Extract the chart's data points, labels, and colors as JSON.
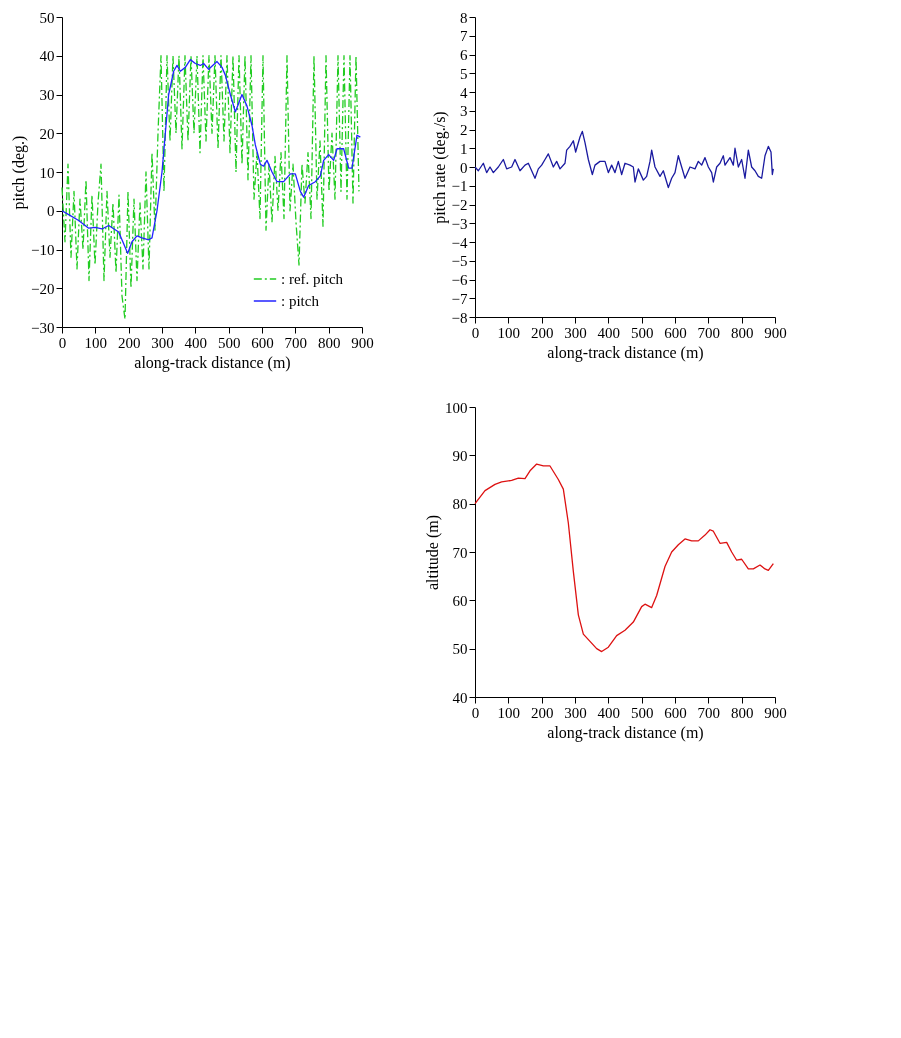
{
  "chart_data": [
    {
      "type": "line",
      "xlabel": "along-track distance (m)",
      "ylabel": "pitch (deg.)",
      "xlim": [
        0,
        900
      ],
      "ylim": [
        -30,
        50
      ],
      "xticks": [
        0,
        100,
        200,
        300,
        400,
        500,
        600,
        700,
        800,
        900
      ],
      "yticks": [
        -30,
        -20,
        -10,
        0,
        10,
        20,
        30,
        40,
        50
      ],
      "grid": false,
      "legend": "bottom right",
      "series": [
        {
          "name": ": ref. pitch",
          "color": "#22cc22",
          "line_style": "dashed",
          "x": [
            0,
            9,
            18,
            27,
            36,
            45,
            54,
            63,
            72,
            81,
            90,
            99,
            108,
            117,
            126,
            135,
            144,
            153,
            162,
            171,
            180,
            189,
            198,
            207,
            216,
            225,
            234,
            243,
            252,
            261,
            270,
            279,
            288,
            297,
            306,
            315,
            324,
            333,
            342,
            351,
            360,
            369,
            378,
            387,
            396,
            405,
            414,
            423,
            432,
            441,
            450,
            459,
            468,
            477,
            486,
            495,
            504,
            513,
            522,
            531,
            540,
            549,
            558,
            567,
            576,
            585,
            594,
            603,
            612,
            621,
            630,
            639,
            648,
            657,
            666,
            675,
            684,
            693,
            702,
            711,
            720,
            729,
            738,
            747,
            756,
            765,
            774,
            783,
            792,
            801,
            810,
            819,
            828,
            837,
            846,
            855,
            864,
            873,
            882,
            891
          ],
          "values": [
            6,
            -8,
            12,
            -12,
            5,
            -15,
            3,
            -10,
            8,
            -18,
            4,
            -14,
            2,
            12,
            -18,
            5,
            -12,
            2,
            -16,
            4,
            -22,
            -28,
            5,
            -20,
            3,
            -18,
            2,
            -15,
            10,
            -15,
            15,
            -5,
            20,
            40,
            5,
            40,
            18,
            40,
            20,
            40,
            16,
            40,
            18,
            40,
            20,
            40,
            15,
            40,
            18,
            40,
            20,
            40,
            16,
            40,
            18,
            40,
            15,
            40,
            10,
            40,
            12,
            40,
            8,
            40,
            3,
            15,
            -2,
            40,
            -5,
            12,
            -3,
            14,
            0,
            15,
            -2,
            40,
            0,
            12,
            -3,
            -14,
            12,
            2,
            15,
            -2,
            40,
            3,
            18,
            -4,
            40,
            5,
            20,
            3,
            40,
            5,
            40,
            3,
            40,
            2,
            40,
            5
          ]
        },
        {
          "name": ": pitch",
          "color": "#2222ff",
          "line_style": "solid",
          "x": [
            0,
            20,
            50,
            80,
            100,
            120,
            140,
            170,
            185,
            197,
            210,
            225,
            240,
            260,
            270,
            285,
            300,
            310,
            320,
            335,
            345,
            355,
            370,
            385,
            400,
            415,
            425,
            440,
            465,
            480,
            490,
            505,
            520,
            540,
            555,
            570,
            580,
            595,
            605,
            615,
            630,
            645,
            665,
            685,
            700,
            715,
            725,
            740,
            760,
            775,
            785,
            800,
            815,
            825,
            845,
            860,
            870,
            885,
            895
          ],
          "values": [
            0,
            -1,
            -2.5,
            -4.5,
            -4.3,
            -4.7,
            -3.8,
            -5.5,
            -8.5,
            -11,
            -8,
            -6.5,
            -7,
            -7.5,
            -7,
            0,
            10,
            20,
            30,
            36,
            37.5,
            36,
            37,
            39,
            38,
            37.5,
            38,
            36.5,
            38.5,
            37,
            35,
            30,
            25.5,
            30,
            27,
            22,
            17,
            12,
            11.5,
            13,
            10,
            7.5,
            7.5,
            9.5,
            9.5,
            5,
            3.5,
            6.5,
            7.5,
            9,
            13,
            14.5,
            13,
            16,
            16,
            11,
            11,
            19.5,
            19
          ]
        }
      ]
    },
    {
      "type": "line",
      "xlabel": "along-track distance (m)",
      "ylabel": "pitch rate (deg./s)",
      "xlim": [
        0,
        900
      ],
      "ylim": [
        -8,
        8
      ],
      "xticks": [
        0,
        100,
        200,
        300,
        400,
        500,
        600,
        700,
        800,
        900
      ],
      "yticks": [
        -8,
        -7,
        -6,
        -5,
        -4,
        -3,
        -2,
        -1,
        0,
        1,
        2,
        3,
        4,
        5,
        6,
        7,
        8
      ],
      "grid": false,
      "legend": false,
      "series": [
        {
          "color": "#1a1aa0",
          "line_style": "solid",
          "x": [
            0,
            10,
            25,
            35,
            45,
            55,
            70,
            85,
            95,
            110,
            120,
            135,
            150,
            160,
            170,
            180,
            190,
            200,
            210,
            220,
            235,
            245,
            255,
            270,
            275,
            285,
            295,
            302,
            315,
            322,
            330,
            340,
            352,
            360,
            375,
            390,
            400,
            410,
            420,
            430,
            440,
            450,
            465,
            475,
            480,
            490,
            505,
            515,
            525,
            530,
            540,
            555,
            565,
            575,
            580,
            590,
            600,
            610,
            620,
            630,
            645,
            660,
            670,
            680,
            690,
            700,
            710,
            715,
            725,
            735,
            745,
            750,
            765,
            775,
            780,
            790,
            800,
            810,
            820,
            830,
            840,
            850,
            860,
            870,
            880,
            888,
            892,
            895
          ],
          "values": [
            0,
            -0.2,
            0.2,
            -0.3,
            0,
            -0.3,
            0,
            0.4,
            -0.1,
            0,
            0.4,
            -0.2,
            0.1,
            0.2,
            -0.2,
            -0.6,
            -0.1,
            0.1,
            0.4,
            0.7,
            0,
            0.3,
            -0.1,
            0.2,
            0.9,
            1.1,
            1.4,
            0.8,
            1.6,
            1.9,
            1.3,
            0.4,
            -0.4,
            0.1,
            0.3,
            0.3,
            -0.3,
            0.1,
            -0.3,
            0.3,
            -0.4,
            0.2,
            0.1,
            0,
            -0.8,
            -0.1,
            -0.7,
            -0.5,
            0.3,
            0.9,
            0,
            -0.5,
            -0.2,
            -0.8,
            -1.1,
            -0.6,
            -0.3,
            0.6,
            0,
            -0.6,
            0,
            -0.1,
            0.3,
            0.1,
            0.5,
            0,
            -0.3,
            -0.8,
            0,
            0.2,
            0.6,
            0.1,
            0.5,
            0.1,
            1.0,
            0,
            0.4,
            -0.6,
            0.9,
            0,
            -0.2,
            -0.5,
            -0.6,
            0.6,
            1.1,
            0.8,
            -0.4,
            -0.1
          ]
        }
      ]
    },
    {
      "type": "line",
      "xlabel": "along-track distance (m)",
      "ylabel": "altitude (m)",
      "xlim": [
        0,
        900
      ],
      "ylim": [
        40,
        100
      ],
      "xticks": [
        0,
        100,
        200,
        300,
        400,
        500,
        600,
        700,
        800,
        900
      ],
      "yticks": [
        40,
        50,
        60,
        70,
        80,
        90,
        100
      ],
      "grid": false,
      "legend": false,
      "series": [
        {
          "color": "#dd1111",
          "line_style": "solid",
          "x": [
            0,
            30,
            60,
            80,
            110,
            130,
            150,
            165,
            185,
            205,
            225,
            250,
            265,
            280,
            295,
            310,
            325,
            345,
            365,
            380,
            400,
            425,
            450,
            475,
            500,
            510,
            530,
            545,
            570,
            590,
            610,
            630,
            650,
            670,
            690,
            705,
            715,
            735,
            755,
            770,
            785,
            800,
            820,
            835,
            855,
            870,
            880,
            895
          ],
          "values": [
            80,
            82.7,
            84,
            84.5,
            84.8,
            85.3,
            85.2,
            86.8,
            88.2,
            87.8,
            87.8,
            85,
            83,
            76,
            66,
            57,
            53,
            51.5,
            50,
            49.4,
            50.3,
            52.7,
            53.8,
            55.5,
            58.7,
            59.2,
            58.5,
            61,
            67,
            70,
            71.5,
            72.7,
            72.3,
            72.3,
            73.5,
            74.6,
            74.3,
            71.8,
            72,
            70,
            68.3,
            68.5,
            66.5,
            66.5,
            67.3,
            66.5,
            66.2,
            67.6
          ]
        }
      ]
    }
  ]
}
